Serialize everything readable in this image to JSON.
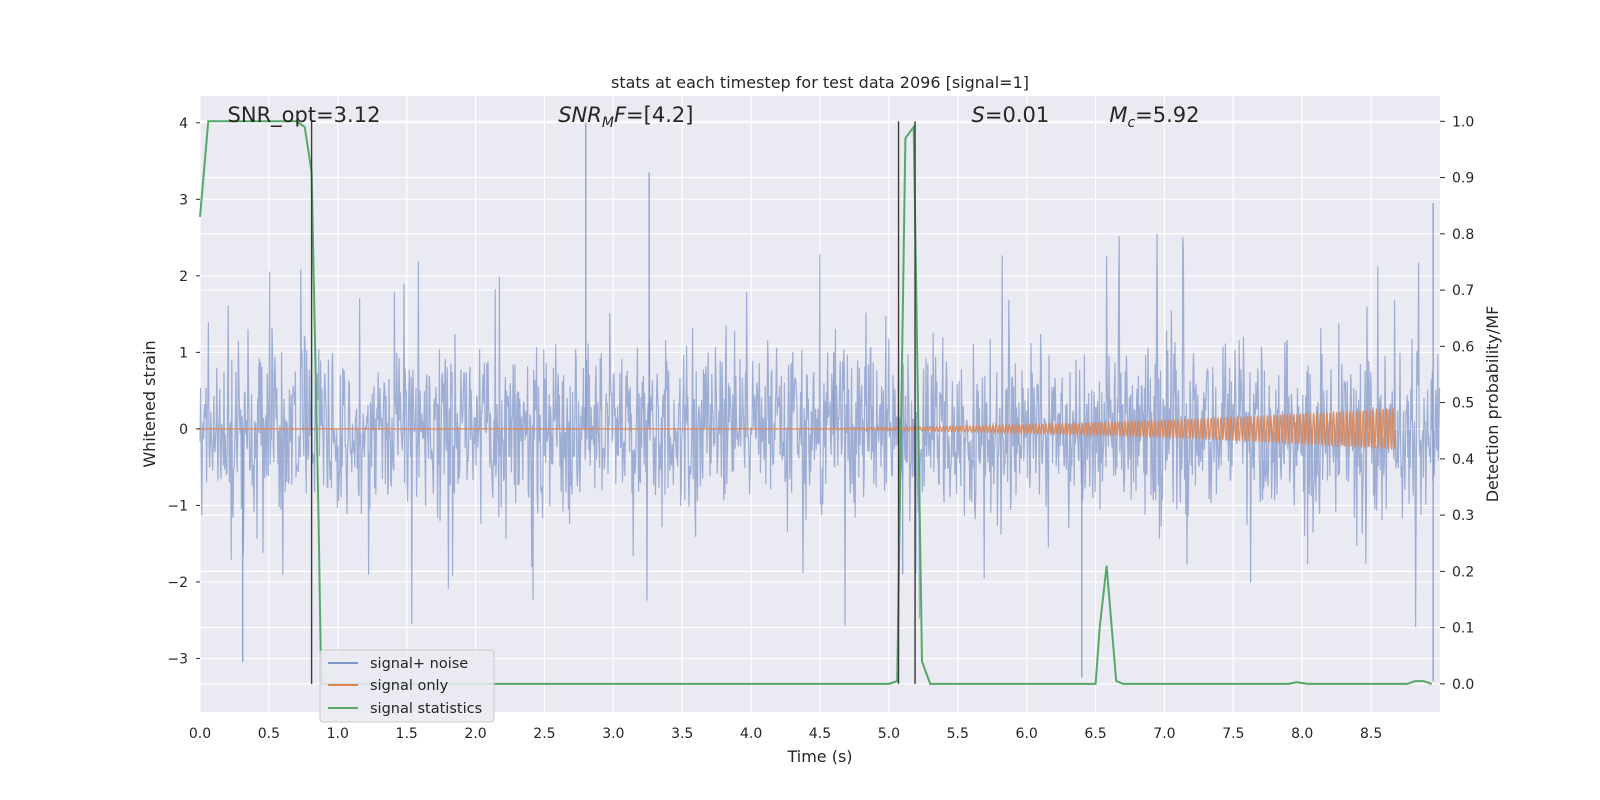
{
  "chart_data": {
    "type": "line",
    "title": "stats at each timestep for test data 2096 [signal=1]",
    "xlabel": "Time (s)",
    "ylabel_left": "Whitened strain",
    "ylabel_right": "Detection probability/MF",
    "xlim": [
      0,
      9
    ],
    "ylim_left": [
      -3.7,
      4.35
    ],
    "ylim_right": [
      -0.05,
      1.045
    ],
    "x_ticks": [
      "0.0",
      "0.5",
      "1.0",
      "1.5",
      "2.0",
      "2.5",
      "3.0",
      "3.5",
      "4.0",
      "4.5",
      "5.0",
      "5.5",
      "6.0",
      "6.5",
      "7.0",
      "7.5",
      "8.0",
      "8.5"
    ],
    "y_ticks_left": [
      "4",
      "3",
      "2",
      "1",
      "0",
      "−1",
      "−2",
      "−3"
    ],
    "y_ticks_right": [
      "1.0",
      "0.9",
      "0.8",
      "0.7",
      "0.6",
      "0.5",
      "0.4",
      "0.3",
      "0.2",
      "0.1",
      "0.0"
    ],
    "grid": true,
    "legend_position": "lower-left",
    "annotations": [
      {
        "label": "SNR_opt=3.12",
        "x": 0.2
      },
      {
        "label": "SNR_MF=[4.2]",
        "x": 2.6
      },
      {
        "label": "S=0.01",
        "x": 5.6
      },
      {
        "label": "M_c=5.92",
        "x": 6.6
      }
    ],
    "vertical_lines": [
      0.81,
      5.07,
      5.19
    ],
    "series": [
      {
        "name": "signal+ noise",
        "axis": "left",
        "kind": "noise",
        "color": "#7f96c8",
        "envelope": {
          "typical_low": -1.2,
          "typical_high": 1.05,
          "max_abs": 4.0
        },
        "peaks": [
          [
            2.8,
            4.0
          ],
          [
            3.26,
            3.35
          ],
          [
            0.31,
            -3.05
          ],
          [
            6.4,
            -3.25
          ],
          [
            8.95,
            2.95
          ],
          [
            8.95,
            -3.3
          ],
          [
            5.1,
            -1.9
          ],
          [
            4.6,
            1.0
          ]
        ]
      },
      {
        "name": "signal only",
        "axis": "left",
        "kind": "chirp",
        "color": "#dd8452",
        "amplitude_start": 0.0,
        "amplitude_end": 0.28,
        "t_end": 8.68
      },
      {
        "name": "signal statistics",
        "axis": "right",
        "kind": "line",
        "color": "#55a868",
        "x": [
          0.0,
          0.06,
          0.12,
          0.2,
          0.3,
          0.4,
          0.5,
          0.6,
          0.7,
          0.76,
          0.81,
          0.86,
          0.88,
          0.92,
          1.0,
          1.5,
          2.0,
          2.5,
          3.0,
          3.5,
          4.0,
          4.5,
          5.0,
          5.06,
          5.12,
          5.18,
          5.24,
          5.3,
          5.36,
          5.5,
          6.0,
          6.5,
          6.53,
          6.58,
          6.65,
          6.7,
          7.0,
          7.5,
          7.9,
          7.96,
          8.04,
          8.5,
          8.76,
          8.82,
          8.88,
          8.94
        ],
        "y": [
          0.83,
          1.0,
          1.0,
          1.0,
          1.0,
          1.0,
          1.0,
          1.0,
          1.0,
          0.99,
          0.91,
          0.3,
          0.0,
          0.0,
          0.0,
          0.0,
          0.0,
          0.0,
          0.0,
          0.0,
          0.0,
          0.0,
          0.0,
          0.005,
          0.97,
          0.99,
          0.04,
          0.0,
          0.0,
          0.0,
          0.0,
          0.0,
          0.1,
          0.21,
          0.005,
          0.0,
          0.0,
          0.0,
          0.0,
          0.003,
          0.0,
          0.0,
          0.0,
          0.005,
          0.005,
          0.0
        ]
      }
    ]
  }
}
